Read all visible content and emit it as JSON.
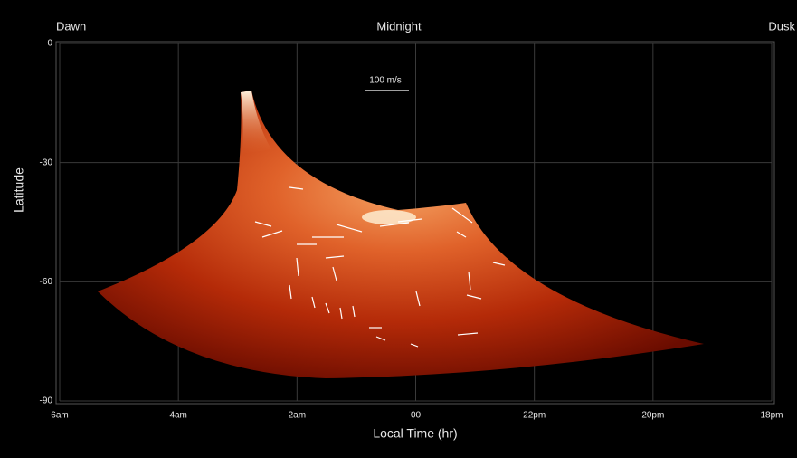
{
  "chart_data": {
    "type": "image",
    "top_labels": [
      "Dawn",
      "Midnight",
      "Dusk"
    ],
    "annotation": "100 m/s",
    "y_label": "Latitude",
    "x_label": "Local Time (hr)",
    "xlim": [
      6,
      -6
    ],
    "xticks": [
      {
        "value": 6,
        "label": "6am"
      },
      {
        "value": 4,
        "label": "4am"
      },
      {
        "value": 2,
        "label": "2am"
      },
      {
        "value": 0,
        "label": "00"
      },
      {
        "value": -2,
        "label": "22pm"
      },
      {
        "value": -4,
        "label": "20pm"
      },
      {
        "value": -6,
        "label": "18pm"
      }
    ],
    "ylim": [
      0,
      -90
    ],
    "yticks": [
      0,
      -30,
      -60,
      -90
    ],
    "grid": true
  }
}
